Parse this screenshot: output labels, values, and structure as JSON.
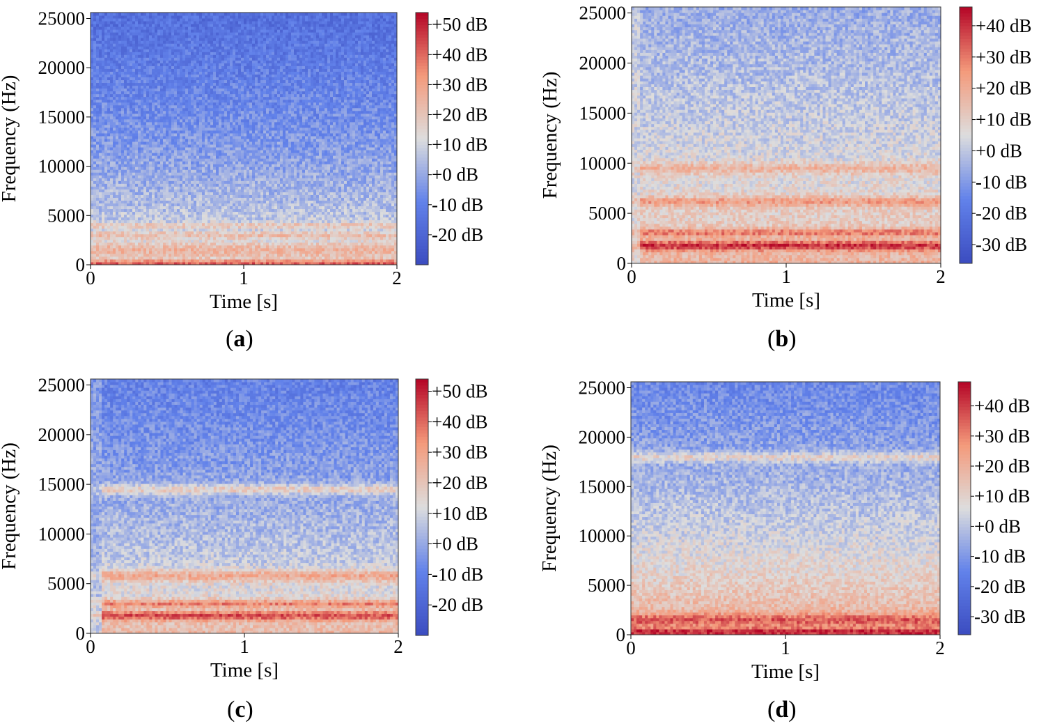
{
  "chart_data": [
    {
      "type": "heatmap",
      "panel": "a",
      "xlabel": "Time [s]",
      "ylabel": "Frequency (Hz)",
      "xlim": [
        0,
        2
      ],
      "ylim": [
        0,
        25600
      ],
      "xticks": [
        0,
        1,
        2
      ],
      "yticks": [
        0,
        5000,
        10000,
        15000,
        20000,
        25000
      ],
      "colorbar": {
        "min": -30,
        "max": 54,
        "ticks": [
          50,
          40,
          30,
          20,
          10,
          0,
          -10,
          -20
        ],
        "labels": [
          "+50 dB",
          "+40 dB",
          "+30 dB",
          "+20 dB",
          "+10 dB",
          "+0 dB",
          "-10 dB",
          "-20 dB"
        ]
      },
      "profile": {
        "type": "natural",
        "lowFreqLevelDb": 22,
        "highFreqLevelDb": -16,
        "onset": 0,
        "bands": [
          {
            "freq": 200,
            "level": 42,
            "width": 300
          },
          {
            "freq": 1500,
            "level": 25,
            "width": 700
          },
          {
            "freq": 3000,
            "level": 22,
            "width": 400
          },
          {
            "freq": 4000,
            "level": 20,
            "width": 300
          }
        ]
      }
    },
    {
      "type": "heatmap",
      "panel": "b",
      "xlabel": "Time [s]",
      "ylabel": "Frequency (Hz)",
      "xlim": [
        0,
        2
      ],
      "ylim": [
        0,
        25600
      ],
      "xticks": [
        0,
        1,
        2
      ],
      "yticks": [
        0,
        5000,
        10000,
        15000,
        20000,
        25000
      ],
      "colorbar": {
        "min": -36,
        "max": 46,
        "ticks": [
          40,
          30,
          20,
          10,
          0,
          -10,
          -20,
          -30
        ],
        "labels": [
          "+40 dB",
          "+30 dB",
          "+20 dB",
          "+10 dB",
          "+0 dB",
          "-10 dB",
          "-20 dB",
          "-30 dB"
        ]
      },
      "profile": {
        "type": "tonal",
        "lowFreqLevelDb": 20,
        "highFreqLevelDb": -6,
        "onset": 0.05,
        "bands": [
          {
            "freq": 1800,
            "level": 40,
            "width": 500
          },
          {
            "freq": 3100,
            "level": 30,
            "width": 400
          },
          {
            "freq": 6200,
            "level": 24,
            "width": 500
          },
          {
            "freq": 9500,
            "level": 18,
            "width": 600
          }
        ]
      }
    },
    {
      "type": "heatmap",
      "panel": "c",
      "xlabel": "Time [s]",
      "ylabel": "Frequency (Hz)",
      "xlim": [
        0,
        2
      ],
      "ylim": [
        0,
        25600
      ],
      "xticks": [
        0,
        1,
        2
      ],
      "yticks": [
        0,
        5000,
        10000,
        15000,
        20000,
        25000
      ],
      "colorbar": {
        "min": -30,
        "max": 54,
        "ticks": [
          50,
          40,
          30,
          20,
          10,
          0,
          -10,
          -20
        ],
        "labels": [
          "+50 dB",
          "+40 dB",
          "+30 dB",
          "+20 dB",
          "+10 dB",
          "+0 dB",
          "-10 dB",
          "-20 dB"
        ]
      },
      "profile": {
        "type": "tonal",
        "lowFreqLevelDb": 26,
        "highFreqLevelDb": -10,
        "onset": 0.08,
        "bands": [
          {
            "freq": 1800,
            "level": 44,
            "width": 500
          },
          {
            "freq": 3000,
            "level": 36,
            "width": 400
          },
          {
            "freq": 5800,
            "level": 28,
            "width": 600
          },
          {
            "freq": 14500,
            "level": 18,
            "width": 500
          }
        ]
      }
    },
    {
      "type": "heatmap",
      "panel": "d",
      "xlabel": "Time [s]",
      "ylabel": "Frequency (Hz)",
      "xlim": [
        0,
        2
      ],
      "ylim": [
        0,
        25600
      ],
      "xticks": [
        0,
        1,
        2
      ],
      "yticks": [
        0,
        5000,
        10000,
        15000,
        20000,
        25000
      ],
      "colorbar": {
        "min": -36,
        "max": 48,
        "ticks": [
          40,
          30,
          20,
          10,
          0,
          -10,
          -20,
          -30
        ],
        "labels": [
          "+40 dB",
          "+30 dB",
          "+20 dB",
          "+10 dB",
          "+0 dB",
          "-10 dB",
          "-20 dB",
          "-30 dB"
        ]
      },
      "profile": {
        "type": "broadband",
        "lowFreqLevelDb": 30,
        "highFreqLevelDb": -14,
        "onset": 0,
        "bands": [
          {
            "freq": 300,
            "level": 44,
            "width": 400
          },
          {
            "freq": 1500,
            "level": 36,
            "width": 600
          },
          {
            "freq": 18000,
            "level": 10,
            "width": 500
          }
        ]
      }
    }
  ],
  "panel_labels": [
    "a",
    "b",
    "c",
    "d"
  ],
  "colors": {
    "low": "#3b4cc0",
    "mid": "#dddddd",
    "high": "#b40426"
  }
}
